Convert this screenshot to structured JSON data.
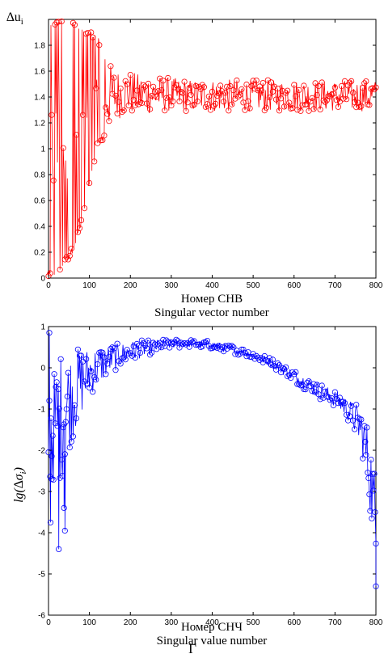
{
  "chart_data": [
    {
      "type": "line",
      "color": "#ff0000",
      "marker": "circle",
      "ylabel": "∆u",
      "ylabel_sub": "i",
      "xlabel": "Номер СНВ",
      "xlabel2": "Singular vector number",
      "xlim": [
        0,
        800
      ],
      "ylim": [
        0,
        2
      ],
      "xticks": [
        0,
        100,
        200,
        300,
        400,
        500,
        600,
        700,
        800
      ],
      "yticks": [
        0,
        0.2,
        0.4,
        0.6,
        0.8,
        1,
        1.2,
        1.4,
        1.6,
        1.8
      ],
      "ytick_labels": [
        "0",
        "0.2",
        "0.4",
        "0.6",
        "0.8",
        "1",
        "1.2",
        "1.4",
        "1.6",
        "1.8"
      ],
      "x": [
        0,
        10,
        20,
        30,
        40,
        50,
        60,
        70,
        80,
        90,
        100,
        110,
        120,
        130,
        140,
        150,
        160,
        170,
        180,
        190,
        200,
        225,
        250,
        275,
        300,
        350,
        400,
        450,
        500,
        550,
        600,
        650,
        700,
        750,
        800
      ],
      "lower_envelope": [
        0.0,
        0.01,
        0.02,
        0.05,
        0.1,
        0.15,
        0.2,
        0.3,
        0.4,
        0.55,
        0.7,
        0.85,
        1.0,
        1.05,
        1.1,
        1.15,
        1.2,
        1.22,
        1.25,
        1.25,
        1.25,
        1.25,
        1.26,
        1.27,
        1.28,
        1.28,
        1.28,
        1.28,
        1.28,
        1.28,
        1.28,
        1.28,
        1.28,
        1.28,
        1.28
      ],
      "upper_envelope": [
        2.0,
        2.0,
        2.0,
        2.0,
        2.0,
        2.0,
        1.98,
        1.96,
        1.95,
        1.93,
        1.92,
        1.9,
        1.88,
        1.75,
        1.72,
        1.7,
        1.68,
        1.66,
        1.65,
        1.63,
        1.62,
        1.6,
        1.6,
        1.58,
        1.57,
        1.56,
        1.56,
        1.56,
        1.55,
        1.55,
        1.55,
        1.55,
        1.55,
        1.55,
        1.55
      ],
      "mean": [
        1.0,
        1.0,
        1.0,
        1.0,
        1.05,
        1.07,
        1.09,
        1.13,
        1.18,
        1.22,
        1.28,
        1.32,
        1.36,
        1.38,
        1.4,
        1.41,
        1.42,
        1.42,
        1.43,
        1.43,
        1.43,
        1.42,
        1.42,
        1.42,
        1.42,
        1.41,
        1.41,
        1.41,
        1.41,
        1.41,
        1.41,
        1.41,
        1.41,
        1.41,
        1.41
      ]
    },
    {
      "type": "line",
      "color": "#0000ff",
      "marker": "circle",
      "ylabel": "lg(∆σ",
      "ylabel_sub": "i",
      "ylabel_end": ")",
      "xlabel": "Номер СНЧ",
      "xlabel2": "Singular value number",
      "xlim": [
        0,
        800
      ],
      "ylim": [
        -6,
        1
      ],
      "xticks": [
        0,
        100,
        200,
        300,
        400,
        500,
        600,
        700,
        800
      ],
      "yticks": [
        -6,
        -5,
        -4,
        -3,
        -2,
        -1,
        0,
        1
      ],
      "x": [
        0,
        10,
        20,
        30,
        40,
        50,
        75,
        100,
        150,
        200,
        250,
        300,
        350,
        400,
        450,
        500,
        550,
        600,
        650,
        700,
        720,
        740,
        760,
        770,
        780,
        790,
        800
      ],
      "mean": [
        -1.5,
        -1.5,
        -1.3,
        -1.2,
        -1.0,
        -0.8,
        -0.4,
        -0.1,
        0.2,
        0.4,
        0.5,
        0.58,
        0.6,
        0.55,
        0.45,
        0.3,
        0.1,
        -0.2,
        -0.5,
        -0.75,
        -0.9,
        -1.1,
        -1.4,
        -1.7,
        -2.2,
        -2.9,
        -4.0
      ],
      "spread": [
        1.5,
        1.3,
        1.5,
        1.6,
        1.4,
        1.2,
        0.9,
        0.6,
        0.35,
        0.25,
        0.18,
        0.12,
        0.1,
        0.1,
        0.1,
        0.1,
        0.12,
        0.15,
        0.2,
        0.2,
        0.25,
        0.3,
        0.5,
        0.6,
        0.8,
        1.0,
        1.3
      ],
      "outliers": [
        [
          2,
          0.85
        ],
        [
          5,
          -3.75
        ],
        [
          8,
          -2.7
        ],
        [
          25,
          -4.4
        ],
        [
          40,
          -3.95
        ],
        [
          38,
          -3.4
        ],
        [
          800,
          -5.3
        ]
      ]
    }
  ],
  "caption": "Г"
}
